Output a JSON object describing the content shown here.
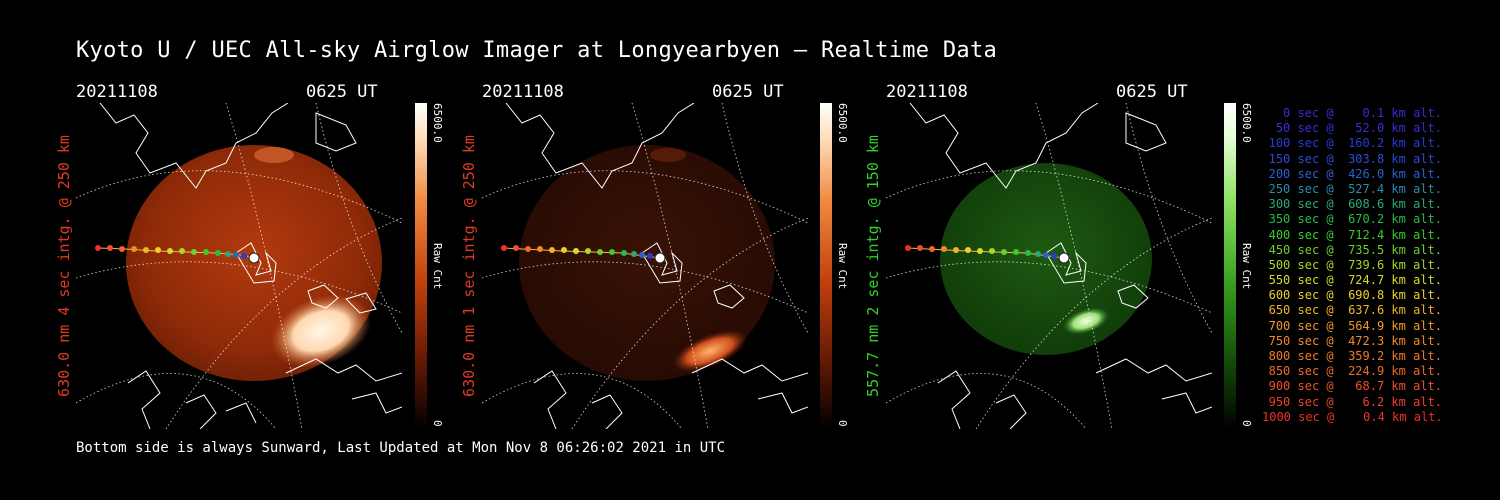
{
  "page": {
    "title": "Kyoto U / UEC All-sky Airglow Imager at Longyearbyen — Realtime Data",
    "footer": "Bottom side is always Sunward, Last Updated at Mon Nov  8 06:26:02 2021 in UTC"
  },
  "colors": {
    "background": "#000000",
    "red_channel": "#e0321c",
    "green_channel": "#22c01e"
  },
  "panels": [
    {
      "date": "20211108",
      "time": "0625 UT",
      "ylabel": "630.0 nm 4 sec intg. @ 250 km",
      "ylabel_color": "#e03a22",
      "colorbar_max": "6500.0",
      "colorbar_min": "0",
      "colorbar_unit": "Raw Cnt",
      "palette": "red",
      "brightness": "high"
    },
    {
      "date": "20211108",
      "time": "0625 UT",
      "ylabel": "630.0 nm 1 sec intg. @ 250 km",
      "ylabel_color": "#e03a22",
      "colorbar_max": "6500.0",
      "colorbar_min": "0",
      "colorbar_unit": "Raw Cnt",
      "palette": "red",
      "brightness": "low"
    },
    {
      "date": "20211108",
      "time": "0625 UT",
      "ylabel": "557.7 nm 2 sec intg. @ 150 km",
      "ylabel_color": "#2fd22a",
      "colorbar_max": "6500.0",
      "colorbar_min": "0",
      "colorbar_unit": "Raw Cnt",
      "palette": "green",
      "brightness": "medium"
    }
  ],
  "legend": [
    {
      "text": "0 sec @    0.1 km alt.",
      "color": "#3a2cd8"
    },
    {
      "text": "50 sec @   52.0 km alt.",
      "color": "#3a2cd8"
    },
    {
      "text": "100 sec @  160.2 km alt.",
      "color": "#2a3ad8"
    },
    {
      "text": "150 sec @  303.8 km alt.",
      "color": "#2a4ad8"
    },
    {
      "text": "200 sec @  426.0 km alt.",
      "color": "#2a62d0"
    },
    {
      "text": "250 sec @  527.4 km alt.",
      "color": "#2a8cb0"
    },
    {
      "text": "300 sec @  608.6 km alt.",
      "color": "#2aa87a"
    },
    {
      "text": "350 sec @  670.2 km alt.",
      "color": "#2abb4a"
    },
    {
      "text": "400 sec @  712.4 km alt.",
      "color": "#3acc2a"
    },
    {
      "text": "450 sec @  735.5 km alt.",
      "color": "#6ad02a"
    },
    {
      "text": "500 sec @  739.6 km alt.",
      "color": "#a6d82a"
    },
    {
      "text": "550 sec @  724.7 km alt.",
      "color": "#d4dc2a"
    },
    {
      "text": "600 sec @  690.8 km alt.",
      "color": "#eed02a"
    },
    {
      "text": "650 sec @  637.6 km alt.",
      "color": "#eeb42a"
    },
    {
      "text": "700 sec @  564.9 km alt.",
      "color": "#ee9a2a"
    },
    {
      "text": "750 sec @  472.3 km alt.",
      "color": "#ee8a2a"
    },
    {
      "text": "800 sec @  359.2 km alt.",
      "color": "#ee7a2a"
    },
    {
      "text": "850 sec @  224.9 km alt.",
      "color": "#ee6a2a"
    },
    {
      "text": "900 sec @   68.7 km alt.",
      "color": "#ee502a"
    },
    {
      "text": "950 sec @    6.2 km alt.",
      "color": "#ee402a"
    },
    {
      "text": "1000 sec @    0.4 km alt.",
      "color": "#ee302a"
    }
  ]
}
